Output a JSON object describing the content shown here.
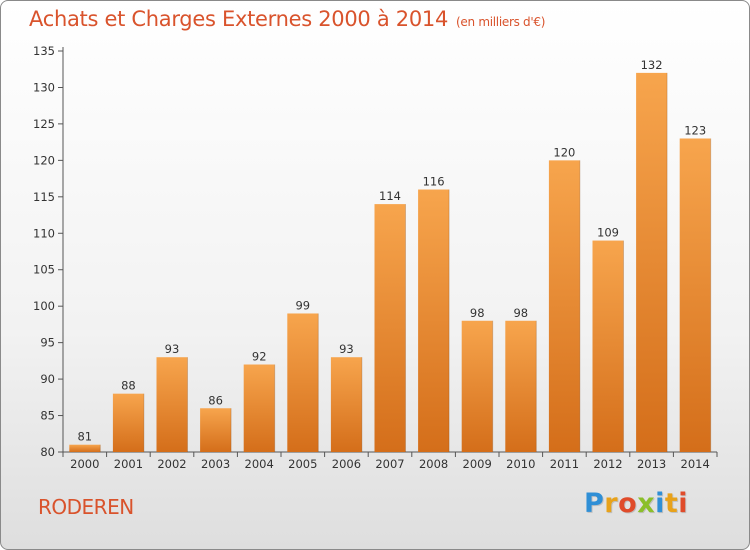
{
  "title": "Achats et Charges Externes 2000 à 2014",
  "subtitle": "(en milliers d'€)",
  "commune": "RODEREN",
  "logo": {
    "text": "Proxiti",
    "letters": [
      {
        "ch": "P",
        "color": "#2f8fd6"
      },
      {
        "ch": "r",
        "color": "#e8a21a"
      },
      {
        "ch": "o",
        "color": "#e04b2a"
      },
      {
        "ch": "x",
        "color": "#8bbf2a"
      },
      {
        "ch": "i",
        "color": "#2f8fd6"
      },
      {
        "ch": "t",
        "color": "#e8a21a"
      },
      {
        "ch": "i",
        "color": "#e04b2a"
      }
    ]
  },
  "colors": {
    "bar_light": "#f7a54d",
    "bar_dark": "#d46e1a",
    "title": "#d9532c",
    "axis": "#555555"
  },
  "chart_data": {
    "type": "bar",
    "categories": [
      "2000",
      "2001",
      "2002",
      "2003",
      "2004",
      "2005",
      "2006",
      "2007",
      "2008",
      "2009",
      "2010",
      "2011",
      "2012",
      "2013",
      "2014"
    ],
    "values": [
      81,
      88,
      93,
      86,
      92,
      99,
      93,
      114,
      116,
      98,
      98,
      120,
      109,
      132,
      123
    ],
    "ylim": [
      80,
      135
    ],
    "yticks": [
      80,
      85,
      90,
      95,
      100,
      105,
      110,
      115,
      120,
      125,
      130,
      135
    ],
    "grid": false,
    "legend": "none"
  }
}
